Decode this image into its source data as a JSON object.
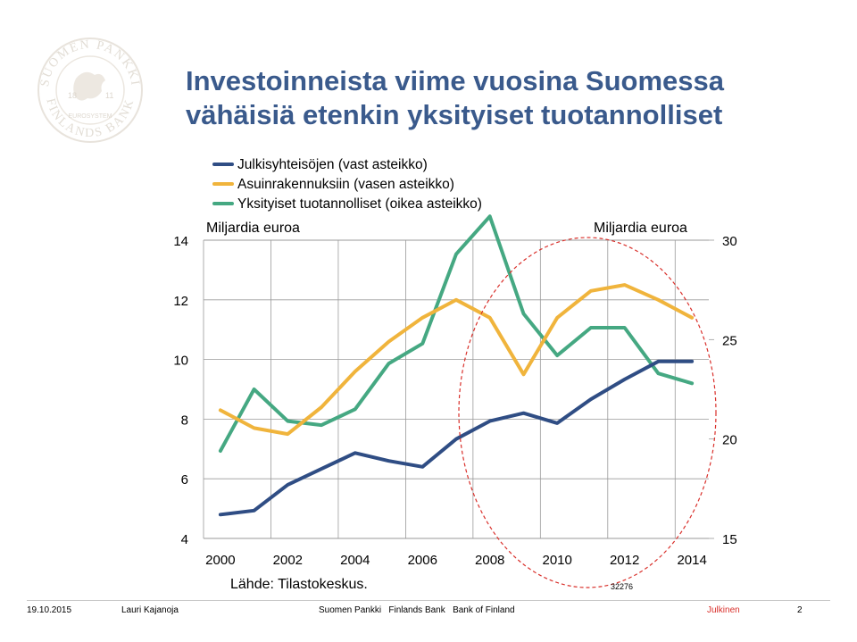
{
  "slide": {
    "title_line1": "Investoinneista viime vuosina Suomessa",
    "title_line2": "vähäisiä etenkin yksityiset tuotannolliset",
    "source": "Lähde: Tilastokeskus.",
    "chart_code": "32276"
  },
  "logo": {
    "ring_top": "SUOMEN PANKKI",
    "ring_bottom": "FINLANDS BANK",
    "inner": "EUROSYSTEM",
    "year_left": "18",
    "year_right": "11"
  },
  "footer": {
    "date": "19.10.2015",
    "author": "Lauri Kajanoja",
    "org": "Suomen Pankki   Finlands Bank   Bank of Finland",
    "classification": "Julkinen",
    "page": "2"
  },
  "colors": {
    "title": "#3a5a8c",
    "public_sec": "#2f4d84",
    "residential": "#f0b43c",
    "private_prod": "#45a882",
    "circle": "#d9302b",
    "classification": "#d9302b"
  },
  "chart_data": {
    "type": "line",
    "left_unit": "Miljardia euroa",
    "right_unit": "Miljardia euroa",
    "x": [
      2000,
      2001,
      2002,
      2003,
      2004,
      2005,
      2006,
      2007,
      2008,
      2009,
      2010,
      2011,
      2012,
      2013,
      2014
    ],
    "x_tick_labels": [
      "2000",
      "2002",
      "2004",
      "2006",
      "2008",
      "2010",
      "2012",
      "2014"
    ],
    "y_left_range": [
      4,
      14
    ],
    "y_left_ticks": [
      "4",
      "6",
      "8",
      "10",
      "12",
      "14"
    ],
    "y_right_range": [
      15,
      30
    ],
    "y_right_ticks": [
      "15",
      "20",
      "25",
      "30"
    ],
    "grid": true,
    "legend_position": "top-left",
    "series": [
      {
        "name": "Julkisyhteisöjen (vast asteikko)",
        "axis": "right",
        "color_key": "public_sec",
        "values": [
          16.2,
          16.4,
          17.7,
          18.5,
          19.3,
          18.9,
          18.6,
          20.0,
          20.9,
          21.3,
          20.8,
          22.0,
          23.0,
          23.9,
          23.9
        ]
      },
      {
        "name": "Asuinrakennuksiin (vasen asteikko)",
        "axis": "left",
        "color_key": "residential",
        "values": [
          8.3,
          7.7,
          7.5,
          8.4,
          9.6,
          10.6,
          11.4,
          12.0,
          11.4,
          9.5,
          11.4,
          12.3,
          12.5,
          12.0,
          11.4
        ]
      },
      {
        "name": "Yksityiset tuotannolliset (oikea asteikko)",
        "axis": "right",
        "color_key": "private_prod",
        "values": [
          19.4,
          22.5,
          20.9,
          20.7,
          21.5,
          23.8,
          24.8,
          29.3,
          31.2,
          26.3,
          24.2,
          25.6,
          25.6,
          23.3,
          22.8
        ]
      }
    ]
  }
}
